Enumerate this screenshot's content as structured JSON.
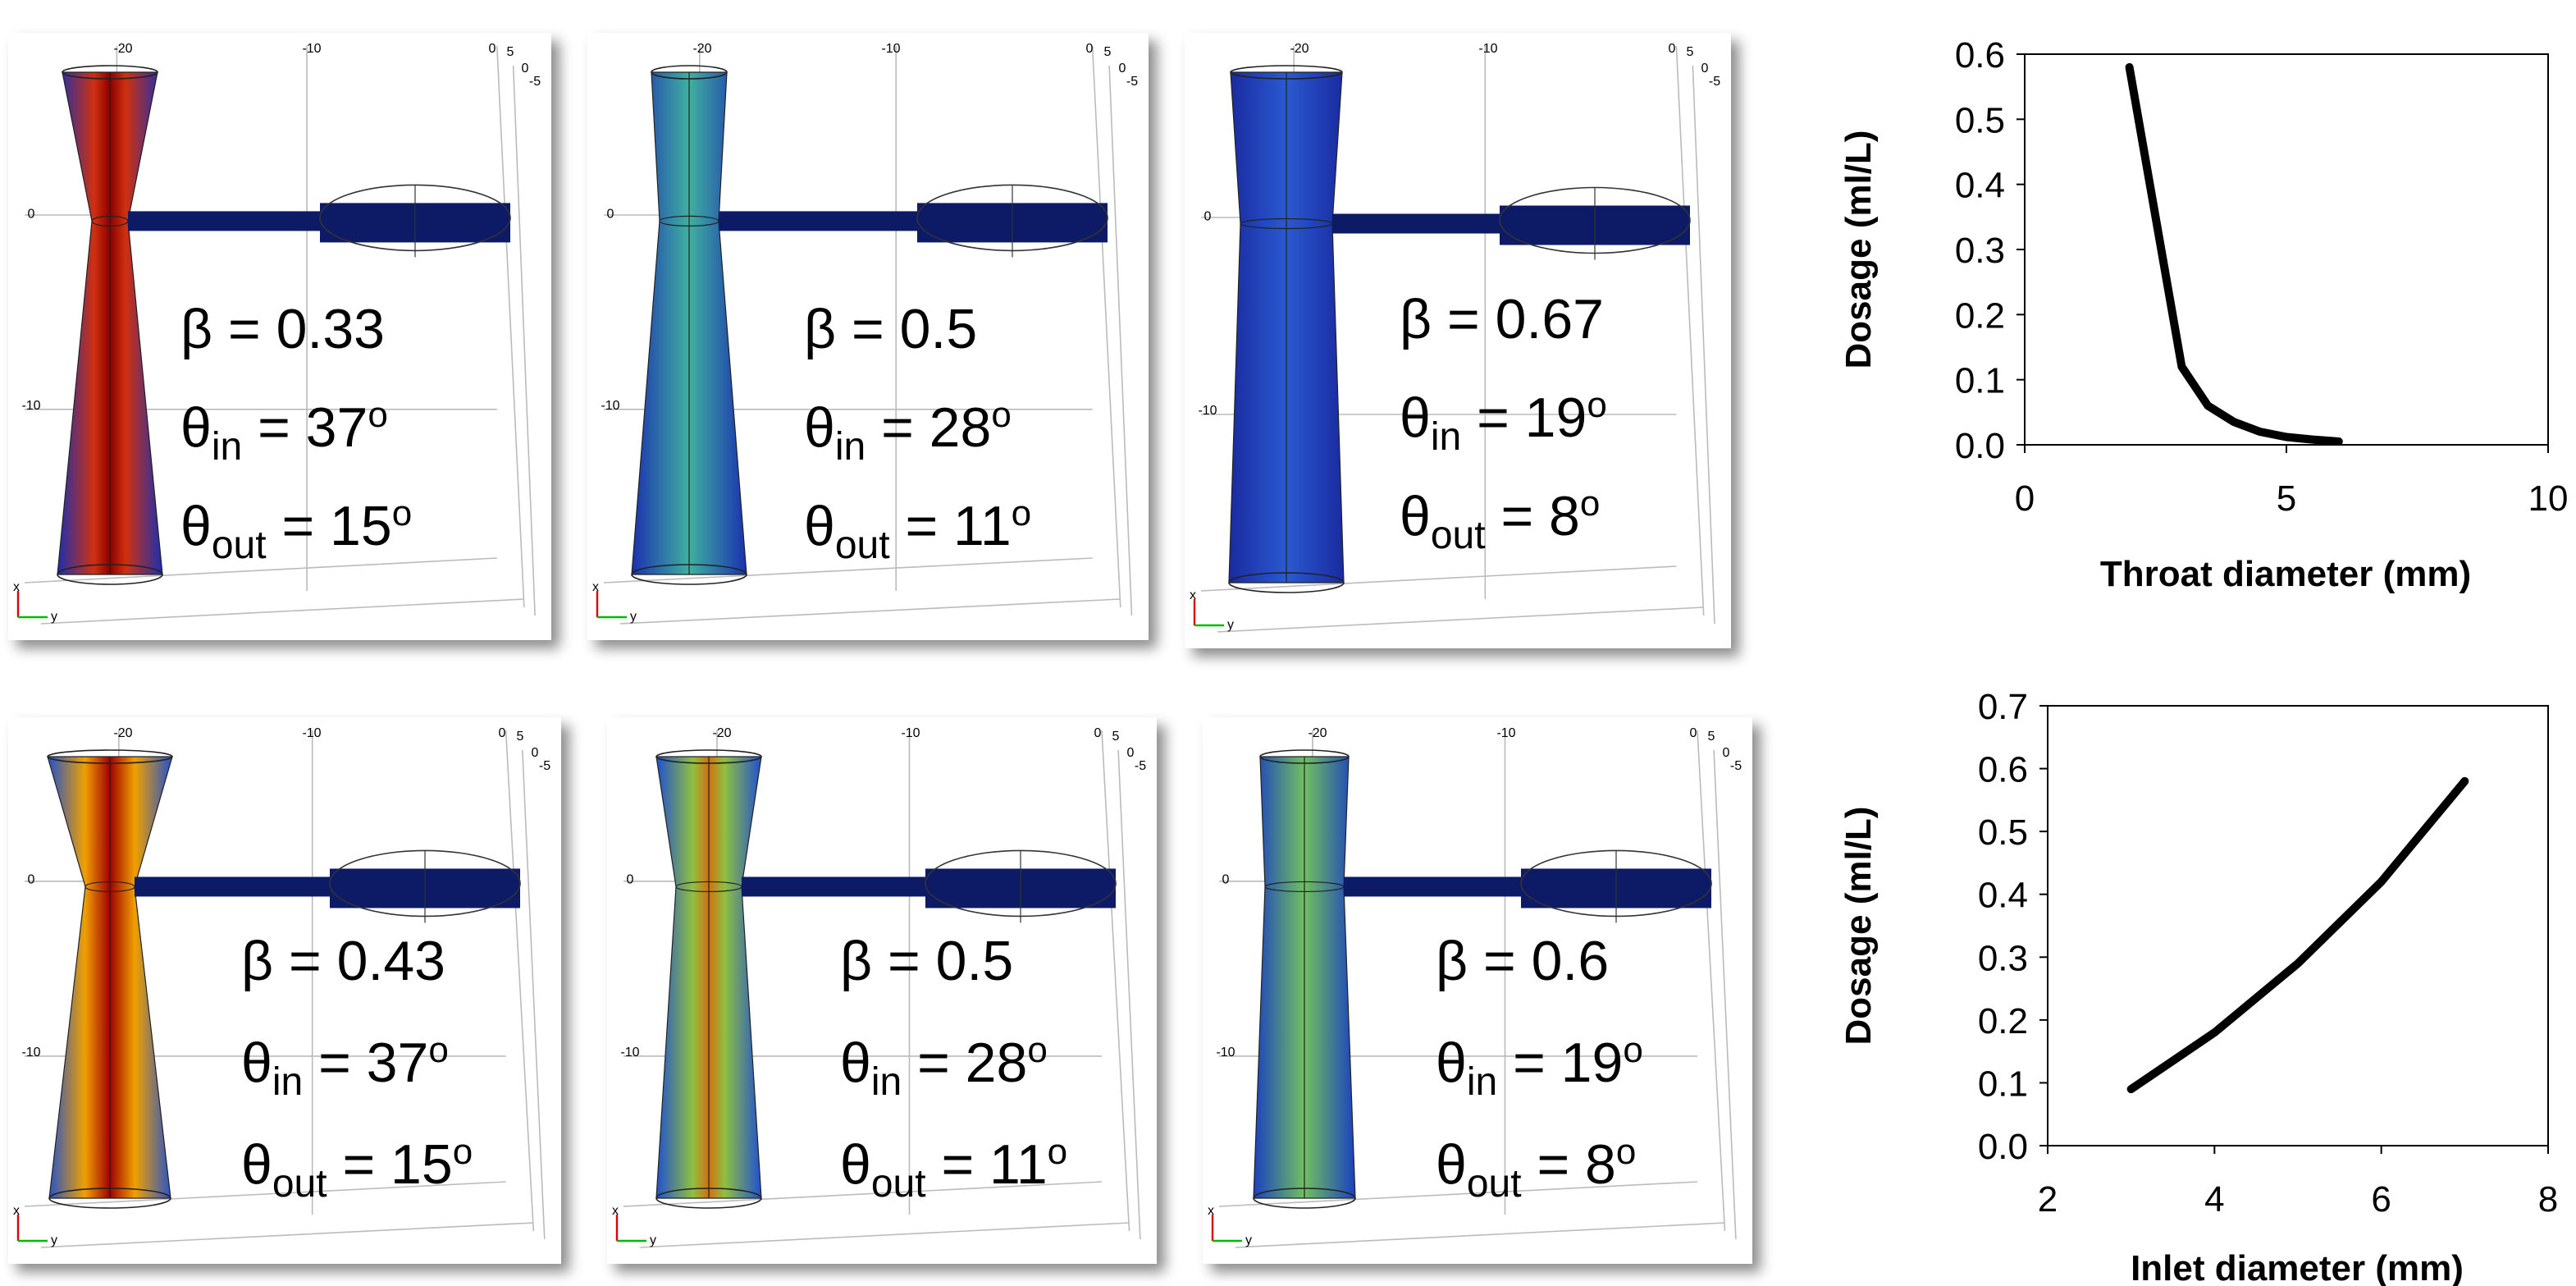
{
  "chart_data": [
    {
      "type": "line",
      "x_label": "Throat diameter (mm)",
      "y_label": "Dosage (ml/L)",
      "color": "#000000",
      "x": [
        2,
        2.5,
        3,
        3.5,
        4,
        4.5,
        5,
        5.5,
        6
      ],
      "values": [
        0.58,
        0.35,
        0.12,
        0.06,
        0.035,
        0.02,
        0.012,
        0.008,
        0.005
      ],
      "xlim": [
        0,
        10
      ],
      "xticks": [
        0,
        5,
        10
      ],
      "ylim": [
        0,
        0.6
      ],
      "yticks": [
        {
          "value": 0,
          "label": "0.0"
        },
        0.1,
        0.2,
        0.3,
        0.4,
        0.5,
        0.6
      ]
    },
    {
      "type": "line",
      "x_label": "Inlet diameter (mm)",
      "y_label": "Dosage (ml/L)",
      "color": "#000000",
      "x": [
        3,
        4,
        5,
        6,
        7
      ],
      "values": [
        0.09,
        0.18,
        0.29,
        0.42,
        0.58
      ],
      "xlim": [
        2,
        8
      ],
      "xticks": [
        2,
        4,
        6,
        8
      ],
      "ylim": [
        0,
        0.7
      ],
      "yticks": [
        {
          "value": 0,
          "label": "0.0"
        },
        0.1,
        0.2,
        0.3,
        0.4,
        0.5,
        0.6,
        0.7
      ]
    }
  ],
  "panels": [
    {
      "beta": "β = 0.33",
      "theta_in": [
        "θ",
        "in",
        " = 37",
        "o"
      ],
      "theta_out": [
        "θ",
        "out",
        " = 15",
        "o"
      ],
      "axis_labels": [
        "-20",
        "-10",
        "0",
        "5",
        "0",
        "-5",
        "0",
        "-10",
        "x",
        "y"
      ]
    },
    {
      "beta": "β = 0.5",
      "theta_in": [
        "θ",
        "in",
        " = 28",
        "o"
      ],
      "theta_out": [
        "θ",
        "out",
        " = 11",
        "o"
      ],
      "axis_labels": [
        "-20",
        "-10",
        "0",
        "5",
        "0",
        "-5",
        "0",
        "-10",
        "x",
        "y"
      ]
    },
    {
      "beta": "β = 0.67",
      "theta_in": [
        "θ",
        "in",
        " = 19",
        "o"
      ],
      "theta_out": [
        "θ",
        "out",
        " = 8",
        "o"
      ],
      "axis_labels": [
        "-20",
        "-10",
        "0",
        "5",
        "0",
        "-5",
        "0",
        "-10",
        "x",
        "y"
      ]
    },
    {
      "beta": "β = 0.43",
      "theta_in": [
        "θ",
        "in",
        " = 37",
        "o"
      ],
      "theta_out": [
        "θ",
        "out",
        " = 15",
        "o"
      ],
      "axis_labels": [
        "-20",
        "-10",
        "0",
        "5",
        "0",
        "-5",
        "0",
        "-10",
        "x",
        "y"
      ]
    },
    {
      "beta": "β = 0.5",
      "theta_in": [
        "θ",
        "in",
        " = 28",
        "o"
      ],
      "theta_out": [
        "θ",
        "out",
        " = 11",
        "o"
      ],
      "axis_labels": [
        "-20",
        "-10",
        "0",
        "5",
        "0",
        "-5",
        "0",
        "-10",
        "x",
        "y"
      ]
    },
    {
      "beta": "β = 0.6",
      "theta_in": [
        "θ",
        "in",
        " = 19",
        "o"
      ],
      "theta_out": [
        "θ",
        "out",
        " = 8",
        "o"
      ],
      "axis_labels": [
        "-20",
        "-10",
        "0",
        "5",
        "0",
        "-5",
        "0",
        "-10",
        "x",
        "y"
      ]
    }
  ]
}
